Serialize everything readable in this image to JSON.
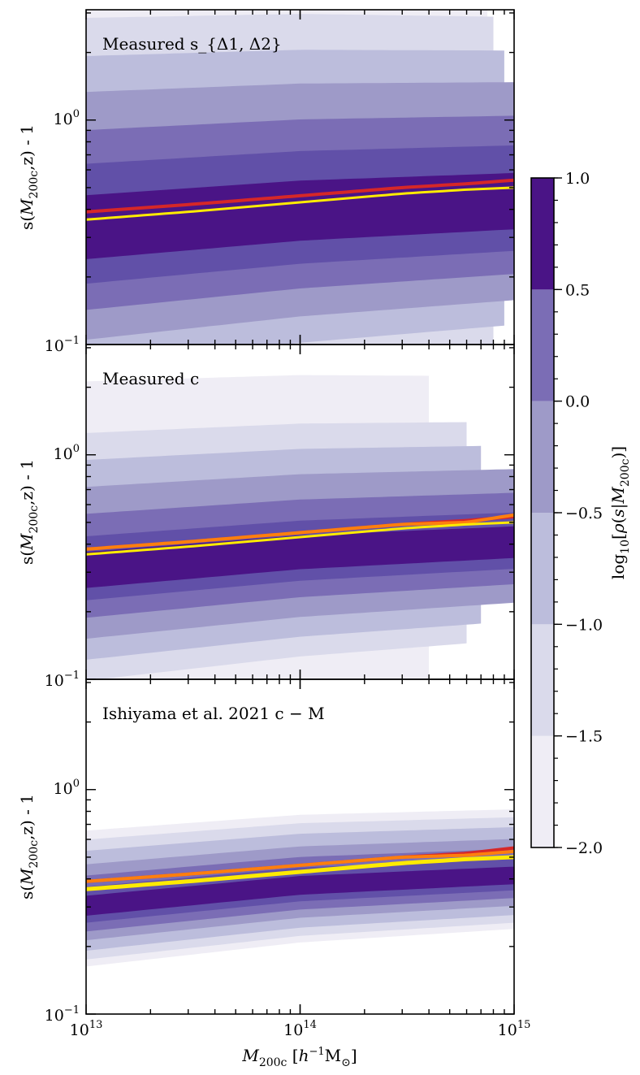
{
  "figure": {
    "shared_xlabel": "M_200c [h^-1 M_⊙]"
  },
  "chart_data": [
    {
      "type": "contour",
      "panel_label": "Measured s_{Δ1, Δ2}",
      "ylabel": "s(M_200c,z) - 1",
      "xscale": "log",
      "yscale": "log",
      "xlim": [
        10000000000000.0,
        1000000000000000.0
      ],
      "ylim": [
        0.1,
        3.1
      ],
      "x_tick_labels": [
        "10^13",
        "10^14",
        "10^15"
      ],
      "y_tick_labels": [
        "10^-1",
        "10^0"
      ],
      "bands": {
        "x": [
          10000000000000.0,
          100000000000000.0,
          1000000000000000.0
        ],
        "median": [
          0.32,
          0.38,
          0.42
        ],
        "half_widths_dex": [
          1.2,
          0.95,
          0.78,
          0.62,
          0.45,
          0.3,
          0.16
        ],
        "x_max_outer": [
          750000000000000.0,
          800000000000000.0,
          900000000000000.0,
          1000000000000000.0,
          1000000000000000.0,
          1000000000000000.0,
          1000000000000000.0
        ]
      },
      "series": [
        {
          "name": "red",
          "color": "#d62728",
          "x": [
            10000000000000.0,
            30000000000000.0,
            100000000000000.0,
            300000000000000.0,
            600000000000000.0,
            1000000000000000.0
          ],
          "y": [
            0.39,
            0.42,
            0.46,
            0.5,
            0.52,
            0.54
          ]
        },
        {
          "name": "yellow",
          "color": "#ffeb00",
          "x": [
            10000000000000.0,
            30000000000000.0,
            100000000000000.0,
            300000000000000.0,
            600000000000000.0,
            1000000000000000.0
          ],
          "y": [
            0.36,
            0.39,
            0.43,
            0.47,
            0.49,
            0.5
          ]
        }
      ]
    },
    {
      "type": "contour",
      "panel_label": "Measured c",
      "ylabel": "s(M_200c,z) - 1",
      "xscale": "log",
      "yscale": "log",
      "xlim": [
        10000000000000.0,
        1000000000000000.0
      ],
      "ylim": [
        0.1,
        3.1
      ],
      "x_tick_labels": [
        "10^13",
        "10^14",
        "10^15"
      ],
      "y_tick_labels": [
        "10^-1",
        "10^0"
      ],
      "bands": {
        "x": [
          10000000000000.0,
          100000000000000.0,
          1000000000000000.0
        ],
        "median": [
          0.3,
          0.36,
          0.4
        ],
        "half_widths_dex": [
          0.85,
          0.62,
          0.5,
          0.38,
          0.26,
          0.16,
          0.09
        ],
        "x_max_outer": [
          400000000000000.0,
          600000000000000.0,
          700000000000000.0,
          1000000000000000.0,
          1000000000000000.0,
          1000000000000000.0,
          1000000000000000.0
        ]
      },
      "series": [
        {
          "name": "red",
          "color": "#d62728",
          "x": [
            10000000000000.0,
            30000000000000.0,
            100000000000000.0,
            300000000000000.0,
            600000000000000.0,
            1000000000000000.0
          ],
          "y": [
            0.38,
            0.41,
            0.45,
            0.49,
            0.51,
            0.53
          ]
        },
        {
          "name": "orange",
          "color": "#ff7f0e",
          "x": [
            10000000000000.0,
            30000000000000.0,
            100000000000000.0,
            300000000000000.0,
            600000000000000.0,
            1000000000000000.0
          ],
          "y": [
            0.38,
            0.41,
            0.45,
            0.49,
            0.5,
            0.54
          ]
        },
        {
          "name": "yellow",
          "color": "#ffeb00",
          "x": [
            10000000000000.0,
            30000000000000.0,
            100000000000000.0,
            300000000000000.0,
            600000000000000.0,
            1000000000000000.0
          ],
          "y": [
            0.36,
            0.39,
            0.43,
            0.47,
            0.49,
            0.5
          ]
        }
      ]
    },
    {
      "type": "contour",
      "panel_label": "Ishiyama et al. 2021 c − M",
      "ylabel": "s(M_200c,z) - 1",
      "xscale": "log",
      "yscale": "log",
      "xlim": [
        10000000000000.0,
        1000000000000000.0
      ],
      "ylim": [
        0.1,
        3.1
      ],
      "x_tick_labels": [
        "10^13",
        "10^14",
        "10^15"
      ],
      "y_tick_labels": [
        "10^-1",
        "10^0"
      ],
      "bands": {
        "x": [
          10000000000000.0,
          100000000000000.0,
          1000000000000000.0
        ],
        "median": [
          0.3,
          0.37,
          0.41
        ],
        "half_widths_dex": [
          0.34,
          0.3,
          0.25,
          0.19,
          0.14,
          0.09,
          0.05
        ],
        "x_max_outer": [
          1000000000000000.0,
          1000000000000000.0,
          1000000000000000.0,
          1000000000000000.0,
          1000000000000000.0,
          1000000000000000.0,
          1000000000000000.0
        ]
      },
      "series": [
        {
          "name": "red",
          "color": "#d62728",
          "x": [
            10000000000000.0,
            30000000000000.0,
            100000000000000.0,
            300000000000000.0,
            600000000000000.0,
            1000000000000000.0
          ],
          "y": [
            0.39,
            0.42,
            0.46,
            0.5,
            0.52,
            0.55
          ]
        },
        {
          "name": "orange",
          "color": "#ff7f0e",
          "x": [
            10000000000000.0,
            30000000000000.0,
            100000000000000.0,
            300000000000000.0,
            600000000000000.0,
            1000000000000000.0
          ],
          "y": [
            0.39,
            0.42,
            0.46,
            0.5,
            0.51,
            0.53
          ]
        },
        {
          "name": "yellow",
          "color": "#ffeb00",
          "x": [
            10000000000000.0,
            30000000000000.0,
            100000000000000.0,
            300000000000000.0,
            600000000000000.0,
            1000000000000000.0
          ],
          "y": [
            0.36,
            0.39,
            0.43,
            0.47,
            0.49,
            0.5
          ]
        }
      ]
    },
    {
      "type": "colorbar",
      "label": "log10[ρ(s|M_200c)]",
      "range": [
        -2.0,
        1.0
      ],
      "tick_labels": [
        "1.0",
        "0.5",
        "0.0",
        "−0.5",
        "−1.0",
        "−1.5",
        "−2.0"
      ],
      "levels": [
        {
          "from": -2.0,
          "to": -1.5,
          "color": "#efedf5"
        },
        {
          "from": -1.5,
          "to": -1.0,
          "color": "#dadaeb"
        },
        {
          "from": -1.0,
          "to": -0.5,
          "color": "#bcbddc"
        },
        {
          "from": -0.5,
          "to": 0.0,
          "color": "#9e9ac8"
        },
        {
          "from": 0.0,
          "to": 0.5,
          "color": "#7b6db5"
        },
        {
          "from": 0.5,
          "to": 1.0,
          "color": "#4a1486"
        }
      ]
    }
  ]
}
